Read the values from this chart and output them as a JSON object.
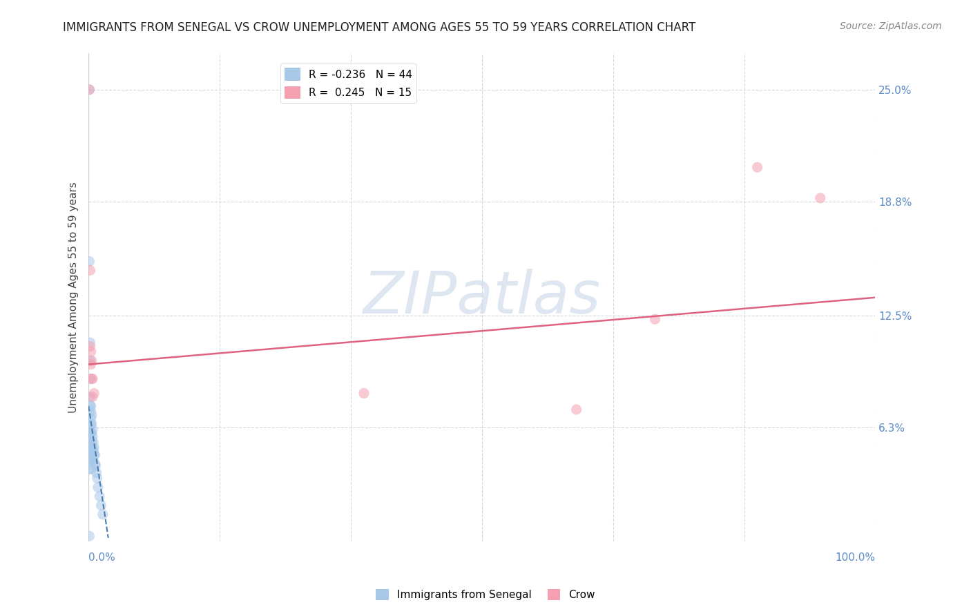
{
  "title": "IMMIGRANTS FROM SENEGAL VS CROW UNEMPLOYMENT AMONG AGES 55 TO 59 YEARS CORRELATION CHART",
  "source": "Source: ZipAtlas.com",
  "ylabel": "Unemployment Among Ages 55 to 59 years",
  "x_tick_labels_left": "0.0%",
  "x_tick_labels_right": "100.0%",
  "y_tick_labels": [
    "6.3%",
    "12.5%",
    "18.8%",
    "25.0%"
  ],
  "y_tick_values": [
    0.063,
    0.125,
    0.188,
    0.25
  ],
  "xlim": [
    0.0,
    1.0
  ],
  "ylim": [
    0.0,
    0.27
  ],
  "watermark": "ZIPatlas",
  "legend_label_blue": "R = -0.236   N = 44",
  "legend_label_pink": "R =  0.245   N = 15",
  "blue_scatter_x": [
    0.001,
    0.001,
    0.001,
    0.001,
    0.002,
    0.002,
    0.002,
    0.002,
    0.002,
    0.002,
    0.003,
    0.003,
    0.003,
    0.003,
    0.003,
    0.003,
    0.003,
    0.003,
    0.004,
    0.004,
    0.004,
    0.004,
    0.004,
    0.004,
    0.004,
    0.005,
    0.005,
    0.005,
    0.005,
    0.006,
    0.006,
    0.006,
    0.007,
    0.007,
    0.008,
    0.008,
    0.009,
    0.01,
    0.011,
    0.012,
    0.014,
    0.016,
    0.018,
    0.001
  ],
  "blue_scatter_y": [
    0.25,
    0.155,
    0.05,
    0.04,
    0.11,
    0.1,
    0.09,
    0.08,
    0.075,
    0.06,
    0.075,
    0.072,
    0.068,
    0.065,
    0.06,
    0.055,
    0.05,
    0.045,
    0.07,
    0.065,
    0.06,
    0.055,
    0.05,
    0.045,
    0.04,
    0.062,
    0.058,
    0.052,
    0.047,
    0.055,
    0.05,
    0.045,
    0.052,
    0.048,
    0.048,
    0.043,
    0.042,
    0.038,
    0.035,
    0.03,
    0.025,
    0.02,
    0.015,
    0.003
  ],
  "pink_scatter_x": [
    0.001,
    0.002,
    0.002,
    0.003,
    0.003,
    0.004,
    0.004,
    0.005,
    0.005,
    0.007,
    0.35,
    0.62,
    0.72,
    0.85,
    0.93
  ],
  "pink_scatter_y": [
    0.25,
    0.15,
    0.108,
    0.105,
    0.098,
    0.1,
    0.09,
    0.09,
    0.08,
    0.082,
    0.082,
    0.073,
    0.123,
    0.207,
    0.19
  ],
  "blue_line_x": [
    0.0,
    0.025
  ],
  "blue_line_y": [
    0.075,
    0.002
  ],
  "pink_line_x": [
    0.0,
    1.0
  ],
  "pink_line_y": [
    0.098,
    0.135
  ],
  "blue_color": "#a8c8e8",
  "pink_color": "#f4a0b0",
  "blue_line_color": "#4a7ab0",
  "pink_line_color": "#e06080",
  "scatter_size": 120,
  "scatter_alpha": 0.55,
  "title_fontsize": 12,
  "axis_label_fontsize": 11,
  "tick_label_color": "#5b8bc8",
  "tick_label_fontsize": 11,
  "watermark_color": "#c8d8e8",
  "watermark_fontsize": 62,
  "background_color": "#ffffff",
  "grid_color": "#d0d8e0",
  "source_fontsize": 10,
  "legend_fontsize": 11
}
